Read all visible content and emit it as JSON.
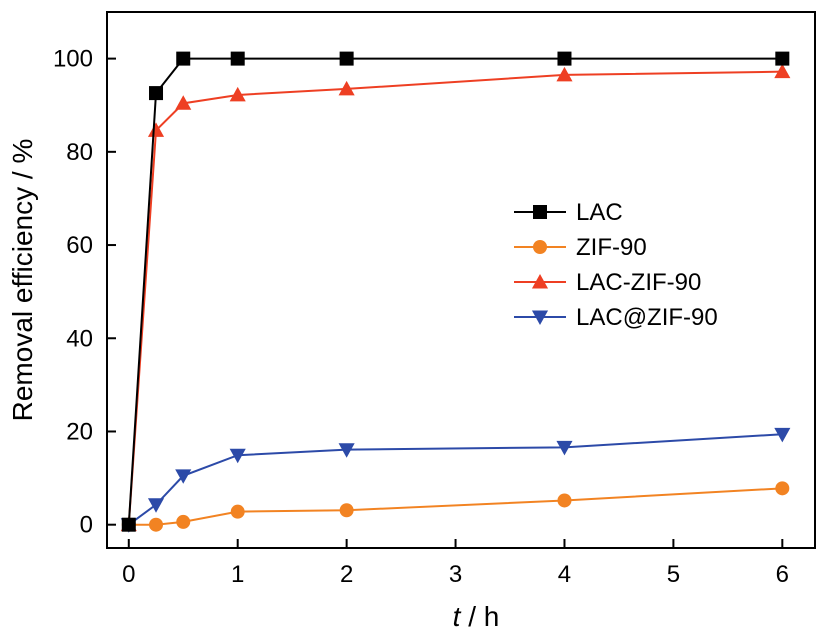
{
  "chart_data": {
    "type": "line",
    "title": "",
    "xlabel_italic": "t",
    "xlabel_rest": " / h",
    "ylabel": "Removal efficiency / %",
    "xlim": [
      -0.2,
      6.3
    ],
    "ylim": [
      -5,
      110
    ],
    "xticks": [
      0,
      1,
      2,
      3,
      4,
      5,
      6
    ],
    "yticks": [
      0,
      20,
      40,
      60,
      80,
      100
    ],
    "grid": false,
    "legend_position": "center-right",
    "series": [
      {
        "name": "LAC",
        "color": "#000000",
        "marker": "square",
        "x": [
          0,
          0.25,
          0.5,
          1,
          2,
          4,
          6
        ],
        "y": [
          0,
          92.6,
          100,
          100,
          100,
          100,
          100
        ]
      },
      {
        "name": "ZIF-90",
        "color": "#f28322",
        "marker": "circle",
        "x": [
          0,
          0.25,
          0.5,
          1,
          2,
          4,
          6
        ],
        "y": [
          0,
          0,
          0.6,
          2.8,
          3.1,
          5.2,
          7.8
        ]
      },
      {
        "name": "LAC-ZIF-90",
        "color": "#ee3f23",
        "marker": "triangle-up",
        "x": [
          0,
          0.25,
          0.5,
          1,
          2,
          4,
          6
        ],
        "y": [
          0,
          84.6,
          90.4,
          92.2,
          93.5,
          96.5,
          97.2
        ]
      },
      {
        "name": "LAC@ZIF-90",
        "color": "#2c4aa8",
        "marker": "triangle-down",
        "x": [
          0,
          0.25,
          0.5,
          1,
          2,
          4,
          6
        ],
        "y": [
          0,
          4.3,
          10.5,
          14.9,
          16.1,
          16.6,
          19.4
        ]
      }
    ]
  }
}
